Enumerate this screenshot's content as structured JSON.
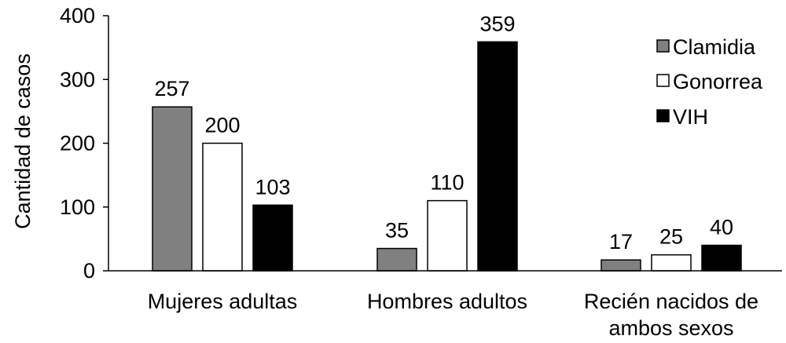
{
  "chart_data": {
    "type": "bar",
    "title": "",
    "xlabel": "",
    "ylabel": "Cantidad de casos",
    "ylim": [
      0,
      400
    ],
    "yticks": [
      0,
      100,
      200,
      300,
      400
    ],
    "categories": [
      [
        "Mujeres adultas"
      ],
      [
        "Hombres adultos"
      ],
      [
        "Recién nacidos de",
        "ambos sexos"
      ]
    ],
    "series": [
      {
        "name": "Clamidia",
        "values": [
          257,
          35,
          17
        ],
        "fill": "#808080",
        "stroke": "#000000"
      },
      {
        "name": "Gonorrea",
        "values": [
          200,
          110,
          25
        ],
        "fill": "#ffffff",
        "stroke": "#000000"
      },
      {
        "name": "VIH",
        "values": [
          103,
          359,
          40
        ],
        "fill": "#000000",
        "stroke": "#000000"
      }
    ],
    "grid": false,
    "legend_position": "top-right",
    "data_labels": true
  }
}
